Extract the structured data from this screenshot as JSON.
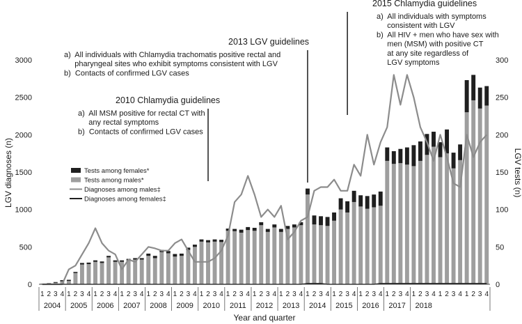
{
  "chart_data": {
    "type": "bar",
    "xlabel": "Year and quarter",
    "ylabel_left": "LGV diagnoses (n)",
    "ylabel_right": "LGV tests (n)",
    "ylim_left": [
      0,
      3000
    ],
    "ylim_right": [
      0,
      300
    ],
    "yticks_left": [
      "0",
      "500",
      "1000",
      "1500",
      "2000",
      "2500",
      "3000"
    ],
    "yticks_right": [
      "0",
      "50",
      "100",
      "150",
      "200",
      "250",
      "300"
    ],
    "years": [
      "2004",
      "2005",
      "2006",
      "2007",
      "2008",
      "2009",
      "2010",
      "2011",
      "2012",
      "2013",
      "2014",
      "2015",
      "2016",
      "2017",
      "2018"
    ],
    "quarter_labels": [
      "1",
      "2",
      "3",
      "4"
    ],
    "legend": [
      {
        "label": "Tests among females*",
        "kind": "bar",
        "color": "#1f1f1f"
      },
      {
        "label": "Tests among males*",
        "kind": "bar",
        "color": "#9e9e9e"
      },
      {
        "label": "Diagnoses among males‡",
        "kind": "line",
        "color": "#8c8c8c"
      },
      {
        "label": "Diagnoses among females‡",
        "kind": "line",
        "color": "#1f1f1f"
      }
    ],
    "series": [
      {
        "name": "Tests among males*",
        "axis": "left",
        "values": [
          5,
          10,
          20,
          40,
          45,
          150,
          265,
          270,
          300,
          285,
          360,
          300,
          300,
          320,
          330,
          330,
          380,
          350,
          430,
          415,
          370,
          380,
          460,
          500,
          570,
          560,
          570,
          565,
          715,
          710,
          690,
          725,
          715,
          790,
          700,
          760,
          700,
          740,
          760,
          790,
          1200,
          800,
          790,
          780,
          850,
          1000,
          960,
          1100,
          1040,
          1010,
          1030,
          1050,
          1650,
          1610,
          1620,
          1600,
          1580,
          1650,
          1730,
          1840,
          1700,
          1750,
          1550,
          1660,
          2300,
          2460,
          2350,
          2390
        ]
      },
      {
        "name": "Tests among females*",
        "axis": "left",
        "values": [
          2,
          5,
          10,
          15,
          15,
          15,
          20,
          20,
          20,
          20,
          20,
          20,
          20,
          20,
          20,
          20,
          30,
          30,
          30,
          30,
          35,
          30,
          30,
          30,
          30,
          30,
          30,
          30,
          30,
          30,
          40,
          40,
          40,
          40,
          40,
          40,
          40,
          40,
          40,
          40,
          80,
          120,
          120,
          120,
          110,
          150,
          150,
          150,
          150,
          170,
          170,
          190,
          180,
          170,
          190,
          230,
          280,
          260,
          280,
          200,
          200,
          320,
          210,
          210,
          430,
          340,
          280,
          260
        ]
      },
      {
        "name": "Diagnoses among males‡",
        "axis": "right",
        "values": [
          0,
          0,
          0,
          0,
          20,
          25,
          40,
          55,
          75,
          55,
          45,
          40,
          20,
          33,
          30,
          40,
          50,
          48,
          45,
          45,
          55,
          60,
          45,
          30,
          30,
          30,
          35,
          45,
          65,
          110,
          120,
          145,
          120,
          90,
          100,
          90,
          105,
          60,
          70,
          85,
          90,
          125,
          130,
          130,
          140,
          125,
          125,
          160,
          145,
          200,
          160,
          190,
          210,
          280,
          240,
          280,
          250,
          210,
          190,
          165,
          200,
          170,
          135,
          130,
          200,
          170,
          190,
          200
        ]
      },
      {
        "name": "Diagnoses among females‡",
        "axis": "right",
        "values": [
          0,
          0,
          0,
          0,
          0,
          0,
          0,
          0,
          0,
          0,
          0,
          0,
          0,
          0,
          0,
          0,
          0,
          0,
          0,
          0,
          0,
          0,
          0,
          0,
          0,
          0,
          0,
          0,
          0,
          0,
          0,
          0,
          0,
          0,
          0,
          0,
          0,
          0,
          0,
          0,
          1,
          1,
          1,
          0,
          0,
          0,
          0,
          0,
          0,
          0,
          0,
          1,
          1,
          1,
          1,
          1,
          1,
          1,
          1,
          1,
          1,
          1,
          1,
          1,
          1,
          1,
          1,
          1
        ]
      }
    ],
    "annotations": [
      {
        "title": "2010 Chlamydia guidelines",
        "lines": [
          "a)  All MSM positive for rectal CT with",
          "     any rectal symptoms",
          "b)  Contacts of confirmed LGV cases"
        ]
      },
      {
        "title": "2013 LGV guidelines",
        "lines": [
          "a)  All individuals with Chlamydia trachomatis positive rectal and",
          "     pharyngeal sites who exhibit symptoms consistent with LGV",
          "b)  Contacts of confirmed LGV cases"
        ]
      },
      {
        "title": "2015 Chlamydia guidelines",
        "lines": [
          "a)  All individuals with symptoms",
          "     consistent with LGV",
          "b)  All HIV + men who have sex with",
          "     men (MSM) with positive CT",
          "     at any site regardless of",
          "     LGV symptoms"
        ]
      }
    ]
  }
}
